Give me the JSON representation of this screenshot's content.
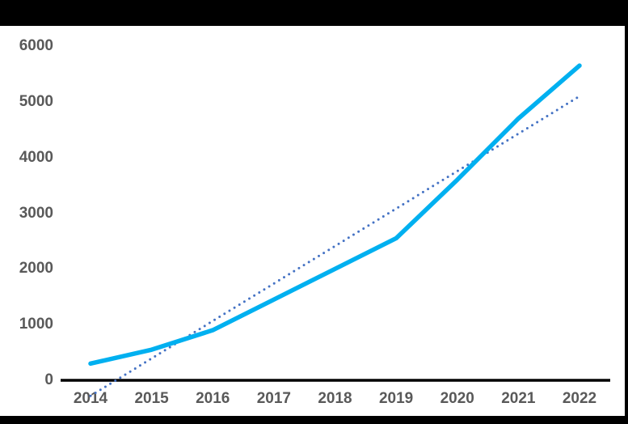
{
  "chart_data": {
    "type": "line",
    "title": "",
    "xlabel": "",
    "ylabel": "",
    "x": [
      2014,
      2015,
      2016,
      2017,
      2018,
      2019,
      2020,
      2021,
      2022
    ],
    "series": [
      {
        "name": "main-series",
        "color": "#00b0f0",
        "values": [
          300,
          550,
          900,
          1450,
          2000,
          2550,
          3600,
          4700,
          5650
        ]
      }
    ],
    "trendline": {
      "type": "linear",
      "style": "dotted",
      "color": "#4472c4",
      "start_value": -280,
      "end_value": 5100
    },
    "ylim": [
      0,
      6000
    ],
    "y_ticks": [
      0,
      1000,
      2000,
      3000,
      4000,
      5000,
      6000
    ],
    "grid": false,
    "legend": false
  },
  "colors": {
    "background": "#ffffff",
    "frame": "#000000",
    "axis_line": "#000000",
    "tick_label": "#595959"
  }
}
